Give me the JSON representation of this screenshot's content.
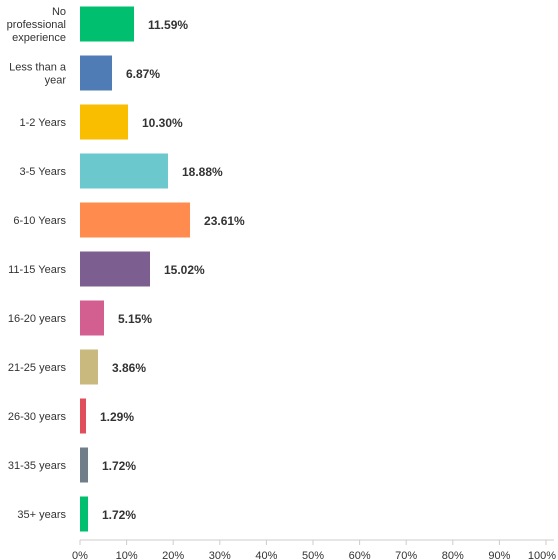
{
  "chart_data": {
    "type": "bar",
    "orientation": "horizontal",
    "categories": [
      "No professional experience",
      "Less than a year",
      "1-2 Years",
      "3-5 Years",
      "6-10 Years",
      "11-15 Years",
      "16-20 years",
      "21-25 years",
      "26-30 years",
      "31-35 years",
      "35+ years"
    ],
    "values": [
      11.59,
      6.87,
      10.3,
      18.88,
      23.61,
      15.02,
      5.15,
      3.86,
      1.29,
      1.72,
      1.72
    ],
    "value_labels": [
      "11.59%",
      "6.87%",
      "10.30%",
      "18.88%",
      "23.61%",
      "15.02%",
      "5.15%",
      "3.86%",
      "1.29%",
      "1.72%",
      "1.72%"
    ],
    "colors": [
      "#00bf6f",
      "#507cb6",
      "#f9be00",
      "#6bc8cd",
      "#ff8b4f",
      "#7d5e90",
      "#d25f90",
      "#c9b97f",
      "#e04e5c",
      "#6f7e89",
      "#00bf6f"
    ],
    "xlim": [
      0,
      100
    ],
    "xticks": [
      "0%",
      "10%",
      "20%",
      "30%",
      "40%",
      "50%",
      "60%",
      "70%",
      "80%",
      "90%",
      "100%"
    ],
    "title": "",
    "xlabel": "",
    "ylabel": "",
    "grid": false,
    "legend": "none"
  }
}
